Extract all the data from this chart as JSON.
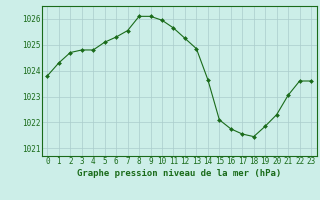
{
  "x": [
    0,
    1,
    2,
    3,
    4,
    5,
    6,
    7,
    8,
    9,
    10,
    11,
    12,
    13,
    14,
    15,
    16,
    17,
    18,
    19,
    20,
    21,
    22,
    23
  ],
  "y": [
    1023.8,
    1024.3,
    1024.7,
    1024.8,
    1024.8,
    1025.1,
    1025.3,
    1025.55,
    1026.1,
    1026.1,
    1025.95,
    1025.65,
    1025.25,
    1024.85,
    1023.65,
    1022.1,
    1021.75,
    1021.55,
    1021.45,
    1021.85,
    1022.3,
    1023.05,
    1023.6,
    1023.6
  ],
  "line_color": "#1a6b1a",
  "marker": "D",
  "marker_size": 2.0,
  "bg_color": "#cceee8",
  "grid_color": "#aacccc",
  "text_color": "#1a6b1a",
  "xlabel": "Graphe pression niveau de la mer (hPa)",
  "ylim": [
    1020.7,
    1026.5
  ],
  "yticks": [
    1021,
    1022,
    1023,
    1024,
    1025,
    1026
  ],
  "xticks": [
    0,
    1,
    2,
    3,
    4,
    5,
    6,
    7,
    8,
    9,
    10,
    11,
    12,
    13,
    14,
    15,
    16,
    17,
    18,
    19,
    20,
    21,
    22,
    23
  ],
  "tick_fontsize": 5.5,
  "xlabel_fontsize": 6.5
}
